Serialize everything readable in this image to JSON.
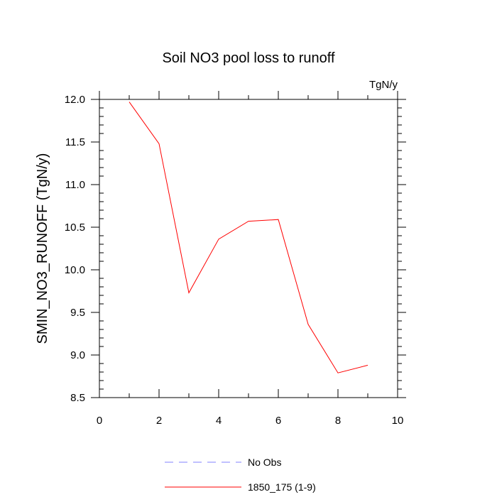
{
  "chart_data": {
    "type": "line",
    "title": "Soil NO3 pool loss to runoff",
    "units": "TgN/y",
    "ylabel": "SMIN_NO3_RUNOFF  (TgN/y)",
    "xlabel": "",
    "xlim": [
      0,
      10
    ],
    "ylim": [
      8.5,
      12.0
    ],
    "x_ticks": [
      0,
      2,
      4,
      6,
      8,
      10
    ],
    "y_ticks": [
      "8.5",
      "9.0",
      "9.5",
      "10.0",
      "10.5",
      "11.0",
      "11.5",
      "12.0"
    ],
    "grid": false,
    "legend_position": "bottom",
    "series": [
      {
        "name": "No Obs",
        "color": "#8080ff",
        "style": "dashed",
        "x": [],
        "y": []
      },
      {
        "name": "1850_175 (1-9)",
        "color": "#ff0000",
        "style": "solid",
        "x": [
          1,
          2,
          3,
          4,
          5,
          6,
          7,
          8,
          9
        ],
        "y": [
          11.97,
          11.48,
          9.73,
          10.36,
          10.57,
          10.59,
          9.36,
          8.79,
          8.88
        ]
      }
    ]
  }
}
